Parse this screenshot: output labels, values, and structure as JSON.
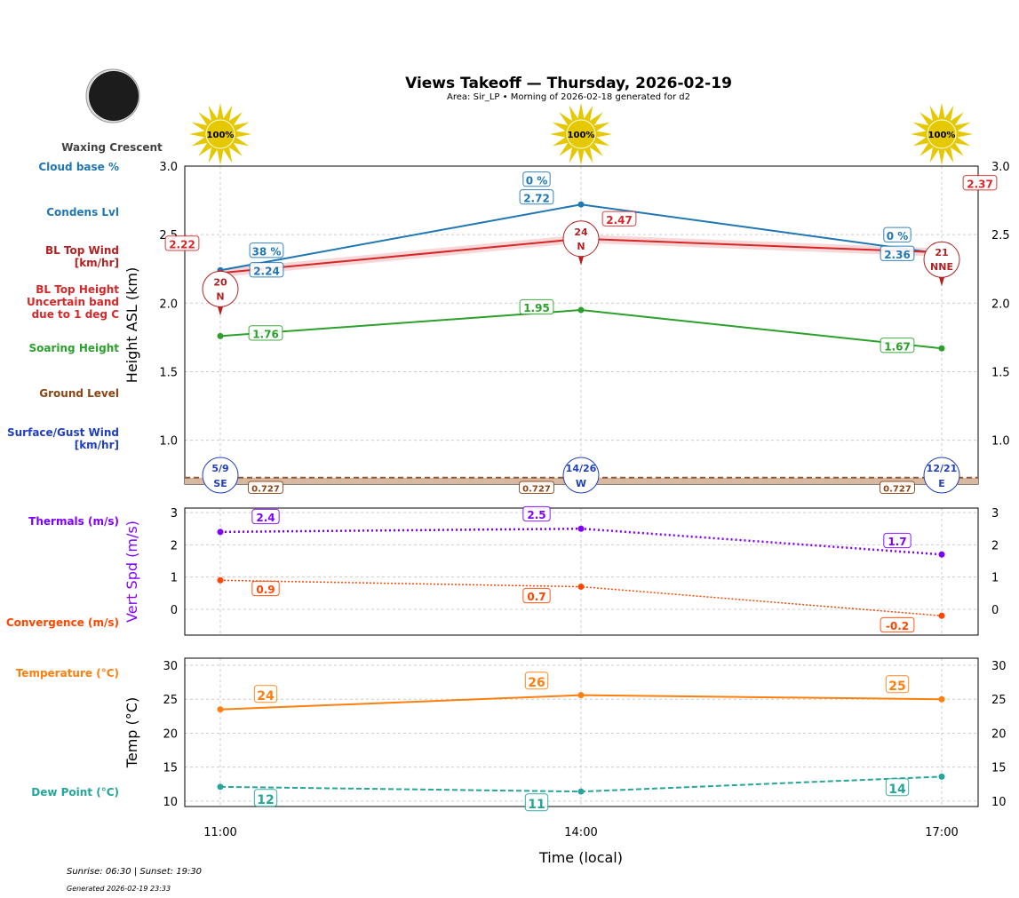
{
  "title": "Views Takeoff — Thursday, 2026-02-19",
  "subtitle": "Area: Sir_LP • Morning of 2026-02-18 generated for d2",
  "moon_phase": "Waxing Crescent",
  "footer": {
    "sun": "Sunrise: 06:30 | Sunset: 19:30",
    "generated": "Generated 2026-02-19 23:33"
  },
  "colors": {
    "condens": "#1f77b4",
    "bltop": "#d62728",
    "blwind": "#b22222",
    "soaring": "#2ca02c",
    "ground": "#8b4513",
    "surface": "#1f3fbf",
    "thermal": "#8000ff",
    "convergence": "#ff4500",
    "temp": "#ff7f0e",
    "dew": "#26a69a"
  },
  "chart_data": [
    {
      "type": "line",
      "ylabel": "Height ASL (km)",
      "ylim": [
        0.68,
        3.0
      ],
      "yticks": [
        "1.0",
        "1.5",
        "2.0",
        "2.5",
        "3.0"
      ],
      "grid": true,
      "x": [
        "11:00",
        "14:00",
        "17:00"
      ],
      "sun_percent": [
        "100%",
        "100%",
        "100%"
      ],
      "legend_labels": [
        "Cloud base %",
        "Condens Lvl",
        "BL Top Wind\n[km/hr]",
        "BL Top Height\nUncertain band\ndue to 1 deg C",
        "Soaring Height",
        "Ground Level",
        "Surface/Gust Wind\n[km/hr]"
      ],
      "series": [
        {
          "key": "condens",
          "values": [
            2.24,
            2.72,
            2.36
          ],
          "labels": [
            "2.24",
            "2.72",
            "2.36"
          ],
          "cloud_base": [
            "38 %",
            "0 %",
            "0 %"
          ]
        },
        {
          "key": "bltop",
          "values": [
            2.22,
            2.47,
            2.37
          ],
          "labels": [
            "2.22",
            "2.47",
            "2.37"
          ],
          "uncertainty": 0.03
        },
        {
          "key": "soaring",
          "values": [
            1.76,
            1.95,
            1.67
          ],
          "labels": [
            "1.76",
            "1.95",
            "1.67"
          ]
        },
        {
          "key": "ground",
          "values": [
            0.727,
            0.727,
            0.727
          ],
          "labels": [
            "0.727",
            "0.727",
            "0.727"
          ]
        }
      ],
      "bl_top_wind": [
        {
          "speed": "20",
          "dir": "N"
        },
        {
          "speed": "24",
          "dir": "N"
        },
        {
          "speed": "21",
          "dir": "NNE"
        }
      ],
      "surface_wind": [
        {
          "speed": "5/9",
          "dir": "SE"
        },
        {
          "speed": "14/26",
          "dir": "W"
        },
        {
          "speed": "12/21",
          "dir": "E"
        }
      ]
    },
    {
      "type": "line",
      "ylabel": "Vert Spd (m/s)",
      "ylim": [
        -0.8,
        3.14
      ],
      "yticks": [
        "0",
        "1",
        "2",
        "3"
      ],
      "grid": true,
      "x": [
        "11:00",
        "14:00",
        "17:00"
      ],
      "legend_labels": [
        "Thermals (m/s)",
        "Convergence (m/s)"
      ],
      "series": [
        {
          "key": "thermal",
          "values": [
            2.4,
            2.5,
            1.7
          ],
          "labels": [
            "2.4",
            "2.5",
            "1.7"
          ]
        },
        {
          "key": "convergence",
          "values": [
            0.9,
            0.7,
            -0.2
          ],
          "labels": [
            "0.9",
            "0.7",
            "-0.2"
          ]
        }
      ]
    },
    {
      "type": "line",
      "ylabel": "Temp (°C)",
      "xlabel": "Time (local)",
      "ylim": [
        9.2,
        31.05
      ],
      "yticks": [
        "10",
        "15",
        "20",
        "25",
        "30"
      ],
      "grid": true,
      "x": [
        "11:00",
        "14:00",
        "17:00"
      ],
      "legend_labels": [
        "Temperature (°C)",
        "Dew Point (°C)"
      ],
      "series": [
        {
          "key": "temp",
          "values": [
            23.5,
            25.6,
            25.0
          ],
          "labels": [
            "24",
            "26",
            "25"
          ]
        },
        {
          "key": "dew",
          "values": [
            12.1,
            11.4,
            13.6
          ],
          "labels": [
            "12",
            "11",
            "14"
          ]
        }
      ]
    }
  ]
}
